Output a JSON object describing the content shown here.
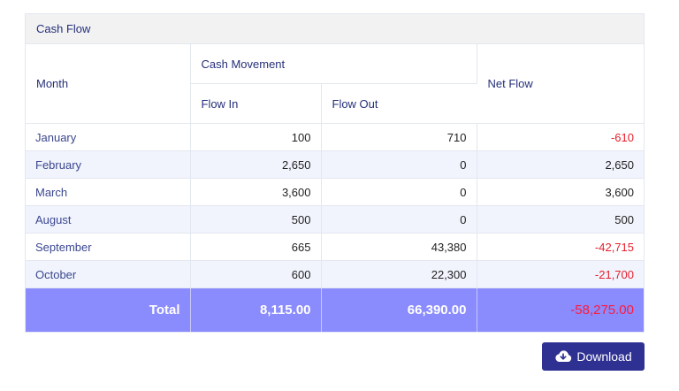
{
  "panel": {
    "title": "Cash Flow"
  },
  "table": {
    "headers": {
      "month": "Month",
      "cash_movement": "Cash Movement",
      "flow_in": "Flow In",
      "flow_out": "Flow Out",
      "net_flow": "Net Flow"
    },
    "rows": [
      {
        "month": "January",
        "flow_in": "100",
        "flow_out": "710",
        "net_flow": "-610"
      },
      {
        "month": "February",
        "flow_in": "2,650",
        "flow_out": "0",
        "net_flow": "2,650"
      },
      {
        "month": "March",
        "flow_in": "3,600",
        "flow_out": "0",
        "net_flow": "3,600"
      },
      {
        "month": "August",
        "flow_in": "500",
        "flow_out": "0",
        "net_flow": "500"
      },
      {
        "month": "September",
        "flow_in": "665",
        "flow_out": "43,380",
        "net_flow": "-42,715"
      },
      {
        "month": "October",
        "flow_in": "600",
        "flow_out": "22,300",
        "net_flow": "-21,700"
      }
    ],
    "total": {
      "label": "Total",
      "flow_in": "8,115.00",
      "flow_out": "66,390.00",
      "net_flow": "-58,275.00"
    }
  },
  "download": {
    "label": "Download",
    "icon": "cloud-download-icon"
  },
  "colors": {
    "negative": "#e5202c",
    "total_row": "#8a8bfd",
    "button": "#2e3192",
    "header_text": "#25307a"
  }
}
